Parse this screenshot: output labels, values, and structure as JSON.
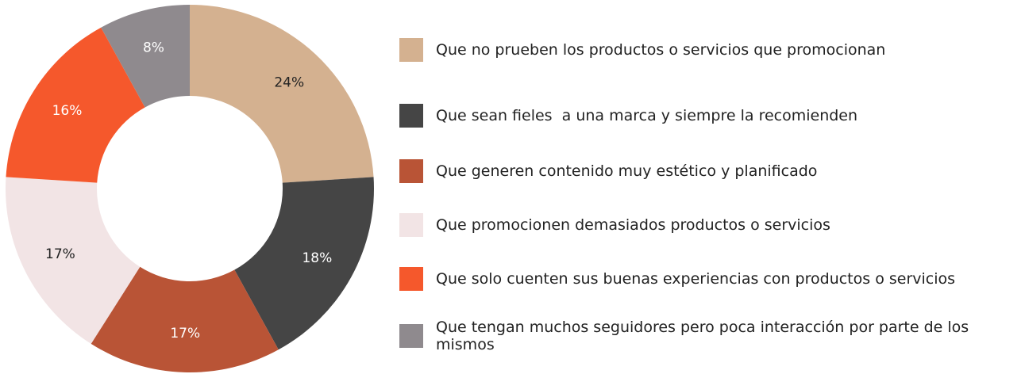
{
  "chart_data": {
    "type": "donut",
    "categories": [
      "Que no prueben los productos o servicios que promocionan",
      "Que sean fieles  a una marca y siempre la recomienden",
      "Que generen contenido muy estético y planificado",
      "Que promocionen demasiados productos o servicios",
      "Que solo cuenten sus buenas experiencias con productos o servicios",
      "Que tengan muchos seguidores pero poca interacción por parte de los mismos"
    ],
    "values": [
      24,
      18,
      17,
      17,
      16,
      8
    ],
    "value_labels": [
      "24%",
      "18%",
      "17%",
      "17%",
      "16%",
      "8%"
    ],
    "colors": [
      "#d4b190",
      "#454545",
      "#b95436",
      "#f2e4e5",
      "#f5582c",
      "#8f8a8e"
    ],
    "label_colors": [
      "#222222",
      "#ffffff",
      "#ffffff",
      "#222222",
      "#ffffff",
      "#ffffff"
    ],
    "legend": "right"
  }
}
